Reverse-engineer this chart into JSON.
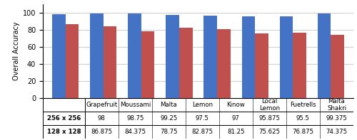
{
  "categories": [
    "Grapefruit",
    "Moussami",
    "Malta",
    "Lemon",
    "Kinow",
    "Local\nLemon",
    "Fuetrells",
    "Malta\nShakri"
  ],
  "cat_labels_table": [
    "Grapefruit",
    "Moussami",
    "Malta",
    "Lemon",
    "Kinow",
    "Local\nLemon",
    "Fuetrells",
    "Malta\nShakri"
  ],
  "values_256": [
    98,
    98.75,
    99.25,
    97.5,
    97,
    95.875,
    95.5,
    99.375
  ],
  "values_128": [
    86.875,
    84.375,
    78.75,
    82.875,
    81.25,
    75.625,
    76.875,
    74.375
  ],
  "color_256": "#4472C4",
  "color_128": "#C0504D",
  "ylabel": "Overall Accuracy",
  "ylim": [
    0,
    110
  ],
  "yticks": [
    0,
    20,
    40,
    60,
    80,
    100
  ],
  "table_row1_label": "256 x 256",
  "table_row2_label": "128 x 128",
  "bar_width": 0.35,
  "background_color": "#ffffff",
  "grid_color": "#cccccc",
  "figsize": [
    5.0,
    1.97
  ],
  "dpi": 100
}
